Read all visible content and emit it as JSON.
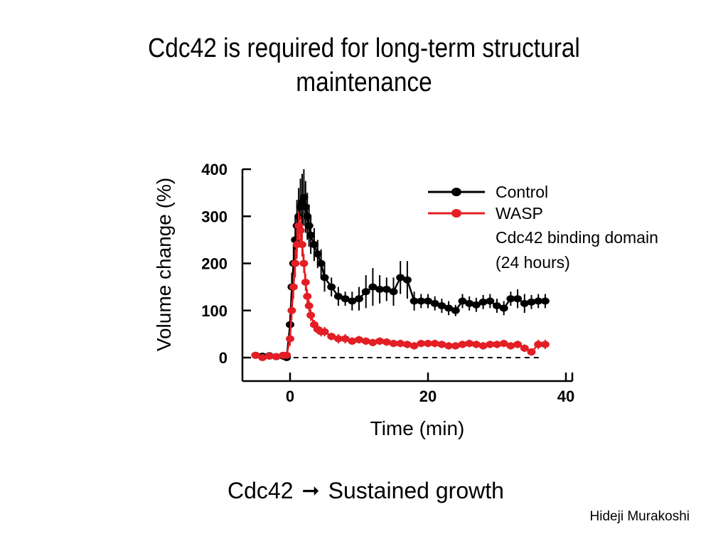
{
  "slide": {
    "title_line1": "Cdc42 is required for long-term structural",
    "title_line2": "maintenance",
    "conclusion_left": "Cdc42",
    "conclusion_right": "Sustained growth",
    "conclusion_arrow_icon": "right-arrow-icon",
    "author": "Hideji Murakoshi"
  },
  "chart_data": {
    "type": "line",
    "xlabel": "Time (min)",
    "ylabel": "Volume change (%)",
    "xlim": [
      -6,
      41
    ],
    "ylim": [
      -50,
      400
    ],
    "xticks": [
      0,
      20,
      40
    ],
    "yticks": [
      0,
      100,
      200,
      300,
      400
    ],
    "baseline": 0,
    "legend_placement": "top-right",
    "legend_note_lines": [
      "Cdc42 binding domain",
      "(24 hours)"
    ],
    "series": [
      {
        "name": "Control",
        "color": "#000000",
        "x": [
          -5,
          -4,
          -3,
          -2,
          -1,
          -0.5,
          0,
          0.25,
          0.5,
          0.75,
          1,
          1.25,
          1.5,
          1.75,
          2,
          2.25,
          2.5,
          2.75,
          3,
          3.5,
          4,
          4.5,
          5,
          6,
          7,
          8,
          9,
          10,
          11,
          12,
          13,
          14,
          15,
          16,
          17,
          18,
          19,
          20,
          21,
          22,
          23,
          24,
          25,
          26,
          27,
          28,
          29,
          30,
          31,
          32,
          33,
          34,
          35,
          36,
          37
        ],
        "y": [
          5,
          3,
          4,
          2,
          3,
          0,
          70,
          150,
          200,
          250,
          280,
          300,
          320,
          330,
          340,
          320,
          300,
          280,
          260,
          240,
          220,
          200,
          170,
          150,
          130,
          125,
          120,
          125,
          140,
          150,
          145,
          145,
          140,
          170,
          165,
          120,
          120,
          120,
          115,
          110,
          105,
          100,
          120,
          115,
          112,
          118,
          120,
          110,
          105,
          125,
          125,
          115,
          118,
          120,
          120
        ],
        "err": [
          5,
          5,
          5,
          5,
          5,
          5,
          20,
          30,
          40,
          50,
          55,
          60,
          60,
          60,
          60,
          55,
          50,
          45,
          40,
          35,
          30,
          30,
          30,
          20,
          20,
          15,
          20,
          25,
          35,
          40,
          30,
          25,
          30,
          35,
          40,
          20,
          15,
          15,
          15,
          15,
          15,
          12,
          15,
          15,
          15,
          15,
          15,
          15,
          15,
          15,
          20,
          20,
          15,
          15,
          15
        ]
      },
      {
        "name": "WASP",
        "color": "#e31e24",
        "x": [
          -5,
          -4,
          -3,
          -2,
          -1,
          -0.5,
          0,
          0.25,
          0.5,
          0.75,
          1,
          1.25,
          1.5,
          1.75,
          2,
          2.25,
          2.5,
          2.75,
          3,
          3.5,
          4,
          4.5,
          5,
          6,
          7,
          8,
          9,
          10,
          11,
          12,
          13,
          14,
          15,
          16,
          17,
          18,
          19,
          20,
          21,
          22,
          23,
          24,
          25,
          26,
          27,
          28,
          29,
          30,
          31,
          32,
          33,
          34,
          35,
          36,
          37
        ],
        "y": [
          5,
          0,
          3,
          2,
          5,
          5,
          40,
          100,
          150,
          200,
          240,
          280,
          270,
          240,
          200,
          160,
          130,
          110,
          90,
          70,
          60,
          55,
          55,
          45,
          40,
          40,
          35,
          38,
          35,
          32,
          35,
          33,
          30,
          30,
          28,
          25,
          30,
          30,
          30,
          28,
          25,
          25,
          28,
          30,
          28,
          25,
          28,
          28,
          30,
          25,
          28,
          20,
          12,
          28,
          28
        ],
        "err": [
          5,
          5,
          5,
          5,
          5,
          5,
          15,
          20,
          25,
          30,
          30,
          30,
          30,
          25,
          20,
          18,
          15,
          12,
          12,
          10,
          10,
          10,
          10,
          8,
          10,
          10,
          8,
          8,
          8,
          8,
          8,
          8,
          8,
          8,
          8,
          8,
          8,
          8,
          8,
          8,
          8,
          8,
          8,
          8,
          8,
          8,
          8,
          8,
          8,
          8,
          8,
          8,
          8,
          10,
          10
        ]
      }
    ]
  }
}
